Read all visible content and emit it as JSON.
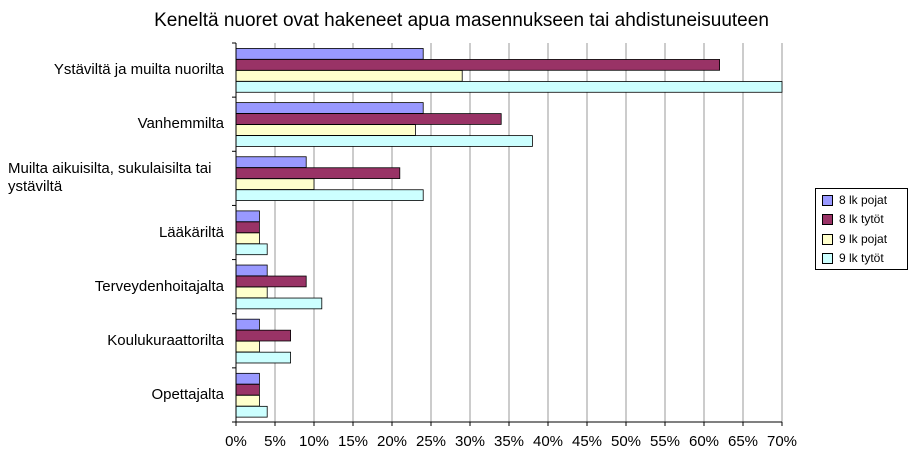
{
  "chart_data": {
    "type": "bar",
    "orientation": "horizontal",
    "title": "Keneltä nuoret ovat hakeneet apua masennukseen tai ahdistuneisuuteen",
    "categories": [
      "Ystäviltä ja muilta nuorilta",
      "Vanhemmilta",
      "Muilta aikuisilta, sukulaisilta tai ystäviltä",
      "Lääkäriltä",
      "Terveydenhoitajalta",
      "Koulukuraattorilta",
      "Opettajalta"
    ],
    "series": [
      {
        "name": "8 lk pojat",
        "color": "#9999ff",
        "values": [
          24,
          24,
          9,
          3,
          4,
          3,
          3
        ]
      },
      {
        "name": "8 lk tytöt",
        "color": "#993366",
        "values": [
          62,
          34,
          21,
          3,
          9,
          7,
          3
        ]
      },
      {
        "name": "9 lk pojat",
        "color": "#ffffcc",
        "values": [
          29,
          23,
          10,
          3,
          4,
          3,
          3
        ]
      },
      {
        "name": "9 lk tytöt",
        "color": "#ccffff",
        "values": [
          70,
          38,
          24,
          4,
          11,
          7,
          4
        ]
      }
    ],
    "xlim": [
      0,
      70
    ],
    "xticks": [
      "0%",
      "5%",
      "10%",
      "15%",
      "20%",
      "25%",
      "30%",
      "35%",
      "40%",
      "45%",
      "50%",
      "55%",
      "60%",
      "65%",
      "70%"
    ],
    "grid": true,
    "legend_position": "right"
  }
}
